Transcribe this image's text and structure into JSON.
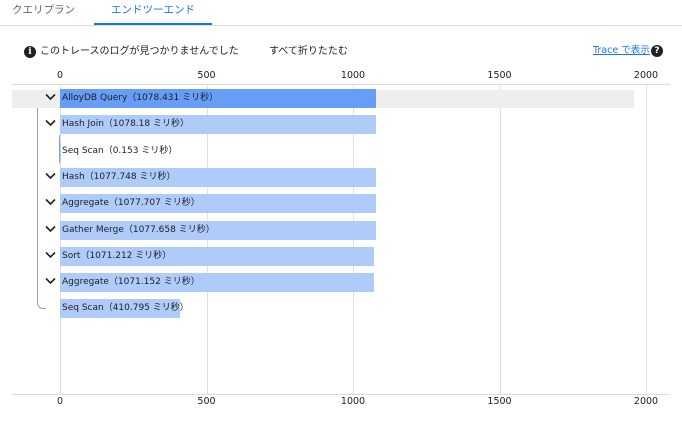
{
  "tabs": [
    {
      "label": "クエリプラン"
    },
    {
      "label": "エンドツーエンド",
      "active": true
    }
  ],
  "info": {
    "icon": "info-icon",
    "message": "このトレースのログが見つかりませんでした",
    "collapse_all": "すべて折りたたむ",
    "trace_link": "Trace で表示",
    "help_icon": "help-icon"
  },
  "axis": {
    "ticks": [
      "0",
      "500",
      "1000",
      "1500",
      "2000"
    ],
    "max": 2000
  },
  "colors": {
    "root_bar": "#669df6",
    "child_bar": "#aecbfa",
    "accent": "#1a73e8"
  },
  "rows": [
    {
      "label": "AlloyDB Query（1078.431 ミリ秒）",
      "duration": 1078.431,
      "expandable": true,
      "root": true
    },
    {
      "label": "Hash Join（1078.18 ミリ秒）",
      "duration": 1078.18,
      "expandable": true
    },
    {
      "label": "Seq Scan（0.153 ミリ秒）",
      "duration": 0.153,
      "expandable": false
    },
    {
      "label": "Hash（1077.748 ミリ秒）",
      "duration": 1077.748,
      "expandable": true
    },
    {
      "label": "Aggregate（1077.707 ミリ秒）",
      "duration": 1077.707,
      "expandable": true
    },
    {
      "label": "Gather Merge（1077.658 ミリ秒）",
      "duration": 1077.658,
      "expandable": true
    },
    {
      "label": "Sort（1071.212 ミリ秒）",
      "duration": 1071.212,
      "expandable": true
    },
    {
      "label": "Aggregate（1071.152 ミリ秒）",
      "duration": 1071.152,
      "expandable": true
    },
    {
      "label": "Seq Scan（410.795 ミリ秒）",
      "duration": 410.795,
      "expandable": false
    }
  ]
}
